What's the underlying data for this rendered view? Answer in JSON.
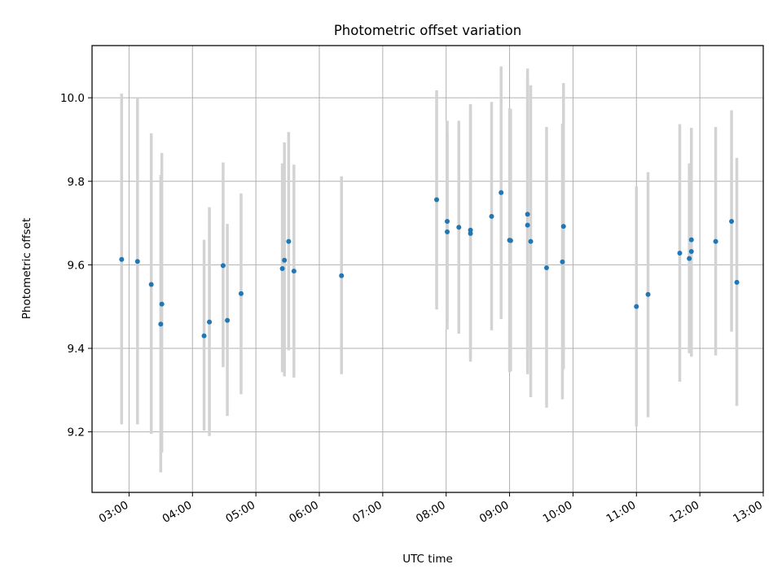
{
  "chart_data": {
    "type": "scatter",
    "title": "Photometric offset variation",
    "xlabel": "UTC time",
    "ylabel": "Photometric offset",
    "x_axis_type": "time",
    "xlim": [
      "02:25",
      "13:00"
    ],
    "ylim": [
      9.055,
      10.125
    ],
    "x_ticks": [
      "03:00",
      "04:00",
      "05:00",
      "06:00",
      "07:00",
      "08:00",
      "09:00",
      "10:00",
      "11:00",
      "12:00",
      "13:00"
    ],
    "y_ticks": [
      9.2,
      9.4,
      9.6,
      9.8,
      10.0
    ],
    "y_tick_labels": [
      "9.2",
      "9.4",
      "9.6",
      "9.8",
      "10.0"
    ],
    "grid": true,
    "legend": "none",
    "marker_color": "#1f77b4",
    "errorbar_color": "#d3d3d3",
    "points": [
      {
        "x": "02:53",
        "y": 9.613,
        "lo": 9.218,
        "hi": 10.01
      },
      {
        "x": "03:08",
        "y": 9.608,
        "lo": 9.218,
        "hi": 10.0
      },
      {
        "x": "03:21",
        "y": 9.553,
        "lo": 9.195,
        "hi": 9.915
      },
      {
        "x": "03:31",
        "y": 9.506,
        "lo": 9.15,
        "hi": 9.868
      },
      {
        "x": "03:30",
        "y": 9.458,
        "lo": 9.103,
        "hi": 9.815
      },
      {
        "x": "04:11",
        "y": 9.43,
        "lo": 9.203,
        "hi": 9.66
      },
      {
        "x": "04:16",
        "y": 9.463,
        "lo": 9.19,
        "hi": 9.738
      },
      {
        "x": "04:29",
        "y": 9.598,
        "lo": 9.355,
        "hi": 9.845
      },
      {
        "x": "04:33",
        "y": 9.467,
        "lo": 9.238,
        "hi": 9.698
      },
      {
        "x": "04:46",
        "y": 9.531,
        "lo": 9.29,
        "hi": 9.771
      },
      {
        "x": "05:25",
        "y": 9.591,
        "lo": 9.343,
        "hi": 9.843
      },
      {
        "x": "05:27",
        "y": 9.611,
        "lo": 9.333,
        "hi": 9.893
      },
      {
        "x": "05:31",
        "y": 9.656,
        "lo": 9.395,
        "hi": 9.918
      },
      {
        "x": "05:36",
        "y": 9.585,
        "lo": 9.33,
        "hi": 9.84
      },
      {
        "x": "06:21",
        "y": 9.574,
        "lo": 9.338,
        "hi": 9.812
      },
      {
        "x": "07:51",
        "y": 9.756,
        "lo": 9.493,
        "hi": 10.018
      },
      {
        "x": "08:01",
        "y": 9.704,
        "lo": 9.463,
        "hi": 9.945
      },
      {
        "x": "08:01",
        "y": 9.679,
        "lo": 9.445,
        "hi": 9.913
      },
      {
        "x": "08:12",
        "y": 9.69,
        "lo": 9.435,
        "hi": 9.945
      },
      {
        "x": "08:23",
        "y": 9.683,
        "lo": 9.38,
        "hi": 9.985
      },
      {
        "x": "08:23",
        "y": 9.675,
        "lo": 9.368,
        "hi": 9.982
      },
      {
        "x": "08:43",
        "y": 9.716,
        "lo": 9.443,
        "hi": 9.99
      },
      {
        "x": "08:52",
        "y": 9.773,
        "lo": 9.47,
        "hi": 10.075
      },
      {
        "x": "09:00",
        "y": 9.659,
        "lo": 9.343,
        "hi": 9.975
      },
      {
        "x": "09:01",
        "y": 9.658,
        "lo": 9.345,
        "hi": 9.973
      },
      {
        "x": "09:17",
        "y": 9.721,
        "lo": 9.375,
        "hi": 10.07
      },
      {
        "x": "09:17",
        "y": 9.695,
        "lo": 9.338,
        "hi": 10.05
      },
      {
        "x": "09:20",
        "y": 9.656,
        "lo": 9.283,
        "hi": 10.03
      },
      {
        "x": "09:35",
        "y": 9.593,
        "lo": 9.258,
        "hi": 9.93
      },
      {
        "x": "09:50",
        "y": 9.607,
        "lo": 9.278,
        "hi": 9.938
      },
      {
        "x": "09:51",
        "y": 9.692,
        "lo": 9.35,
        "hi": 10.035
      },
      {
        "x": "11:00",
        "y": 9.5,
        "lo": 9.213,
        "hi": 9.788
      },
      {
        "x": "11:11",
        "y": 9.529,
        "lo": 9.235,
        "hi": 9.822
      },
      {
        "x": "11:41",
        "y": 9.628,
        "lo": 9.32,
        "hi": 9.937
      },
      {
        "x": "11:50",
        "y": 9.615,
        "lo": 9.388,
        "hi": 9.843
      },
      {
        "x": "11:52",
        "y": 9.66,
        "lo": 9.38,
        "hi": 9.928
      },
      {
        "x": "11:52",
        "y": 9.632,
        "lo": 9.385,
        "hi": 9.88
      },
      {
        "x": "12:15",
        "y": 9.656,
        "lo": 9.383,
        "hi": 9.93
      },
      {
        "x": "12:30",
        "y": 9.704,
        "lo": 9.44,
        "hi": 9.97
      },
      {
        "x": "12:35",
        "y": 9.558,
        "lo": 9.262,
        "hi": 9.856
      }
    ]
  }
}
